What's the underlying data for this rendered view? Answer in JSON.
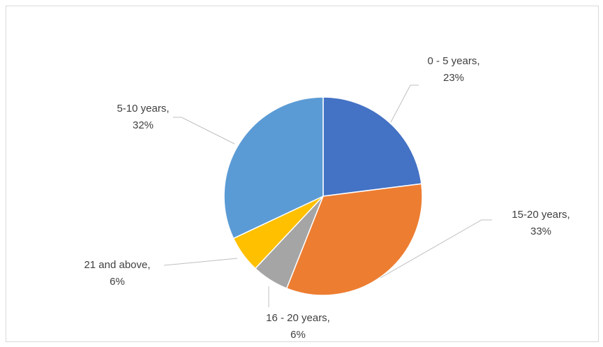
{
  "chart_data": {
    "type": "pie",
    "categories": [
      "0 - 5 years,",
      "15-20 years,",
      "16 - 20 years,",
      "21 and above,",
      "5-10 years,"
    ],
    "values": [
      23,
      33,
      6,
      6,
      32
    ],
    "value_labels": [
      "23%",
      "33%",
      "6%",
      "6%",
      "32%"
    ],
    "colors": [
      "#4472c4",
      "#ed7d31",
      "#a5a5a5",
      "#ffc000",
      "#5b9bd5"
    ]
  }
}
